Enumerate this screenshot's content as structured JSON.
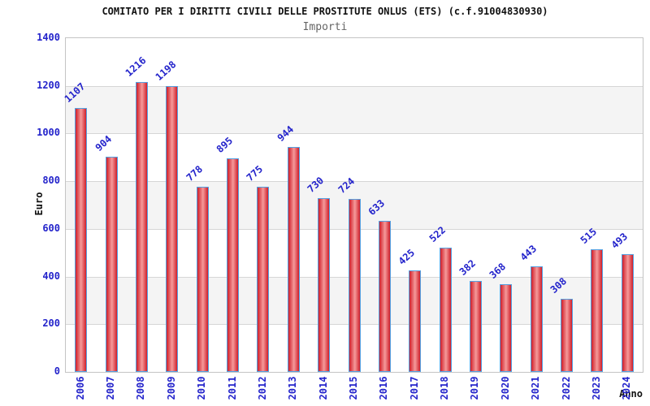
{
  "chart_data": {
    "type": "bar",
    "title": "COMITATO PER I DIRITTI CIVILI DELLE PROSTITUTE ONLUS (ETS) (c.f.91004830930)",
    "subtitle": "Importi",
    "xlabel": "Anno",
    "ylabel": "Euro",
    "categories": [
      "2006",
      "2007",
      "2008",
      "2009",
      "2010",
      "2011",
      "2012",
      "2013",
      "2014",
      "2015",
      "2016",
      "2017",
      "2018",
      "2019",
      "2020",
      "2021",
      "2022",
      "2023",
      "2024"
    ],
    "values": [
      1107,
      904,
      1216,
      1198,
      778,
      895,
      775,
      944,
      730,
      724,
      633,
      425,
      522,
      382,
      368,
      443,
      308,
      515,
      493
    ],
    "ylim": [
      0,
      1400
    ],
    "ytick_step": 200,
    "yticks": [
      0,
      200,
      400,
      600,
      800,
      1000,
      1200,
      1400
    ],
    "grid": true,
    "legend_position": "none",
    "colors": {
      "axis_label_blue": "#2424cb",
      "bar_fill_edge": "#d01f2a",
      "bar_fill_center": "#f59a9a",
      "bar_border": "#54a1e2",
      "band_gray": "#f4f4f4",
      "grid_line": "#d6d6d6",
      "plot_border": "#c4c4c4",
      "title_color": "#111111",
      "subtitle_color": "#666666"
    }
  }
}
